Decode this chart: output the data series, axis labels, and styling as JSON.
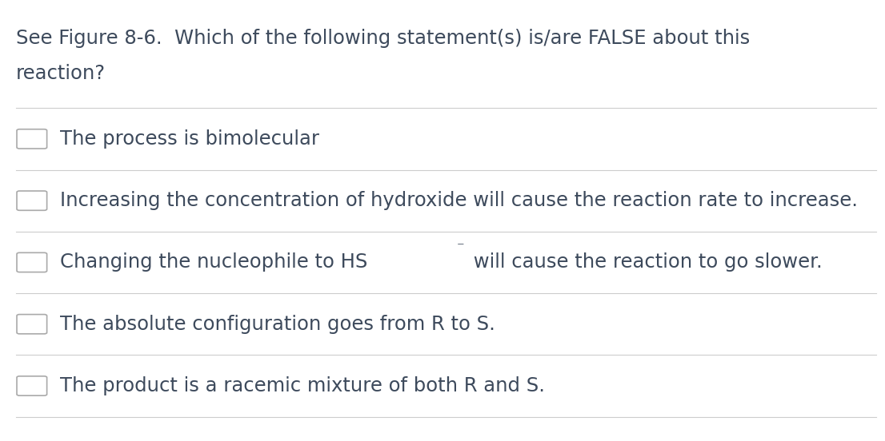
{
  "title_line1": "See Figure 8-6.  Which of the following statement(s) is/are FALSE about this",
  "title_line2": "reaction?",
  "options": [
    "The process is bimolecular",
    "Increasing the concentration of hydroxide will cause the reaction rate to increase.",
    "Changing the nucleophile to HS⁻ will cause the reaction to go slower.",
    "The absolute configuration goes from R to S.",
    "The product is a racemic mixture of both R and S."
  ],
  "background_color": "#ffffff",
  "text_color": "#3d4a5c",
  "line_color": "#cccccc",
  "checkbox_color": "#ffffff",
  "checkbox_edge_color": "#aaaaaa",
  "title_fontsize": 17.5,
  "option_fontsize": 17.5,
  "fig_width": 11.06,
  "fig_height": 5.52
}
